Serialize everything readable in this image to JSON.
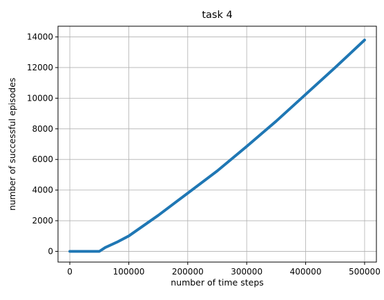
{
  "chart_data": {
    "type": "line",
    "title": "task 4",
    "xlabel": "number of time steps",
    "ylabel": "number of successful episodes",
    "xlim": [
      -20000,
      520000
    ],
    "ylim": [
      -700,
      14700
    ],
    "grid": true,
    "legend": "none",
    "x_ticks": [
      0,
      100000,
      200000,
      300000,
      400000,
      500000
    ],
    "x_tick_labels": [
      "0",
      "100000",
      "200000",
      "300000",
      "400000",
      "500000"
    ],
    "y_ticks": [
      0,
      2000,
      4000,
      6000,
      8000,
      10000,
      12000,
      14000
    ],
    "y_tick_labels": [
      "0",
      "2000",
      "4000",
      "6000",
      "8000",
      "10000",
      "12000",
      "14000"
    ],
    "series": [
      {
        "color": "#1f77b4",
        "x": [
          0,
          50000,
          60000,
          80000,
          100000,
          150000,
          200000,
          250000,
          300000,
          350000,
          400000,
          450000,
          500000
        ],
        "y": [
          0,
          0,
          250,
          600,
          1000,
          2350,
          3800,
          5250,
          6850,
          8500,
          10250,
          12000,
          13800
        ]
      }
    ]
  }
}
